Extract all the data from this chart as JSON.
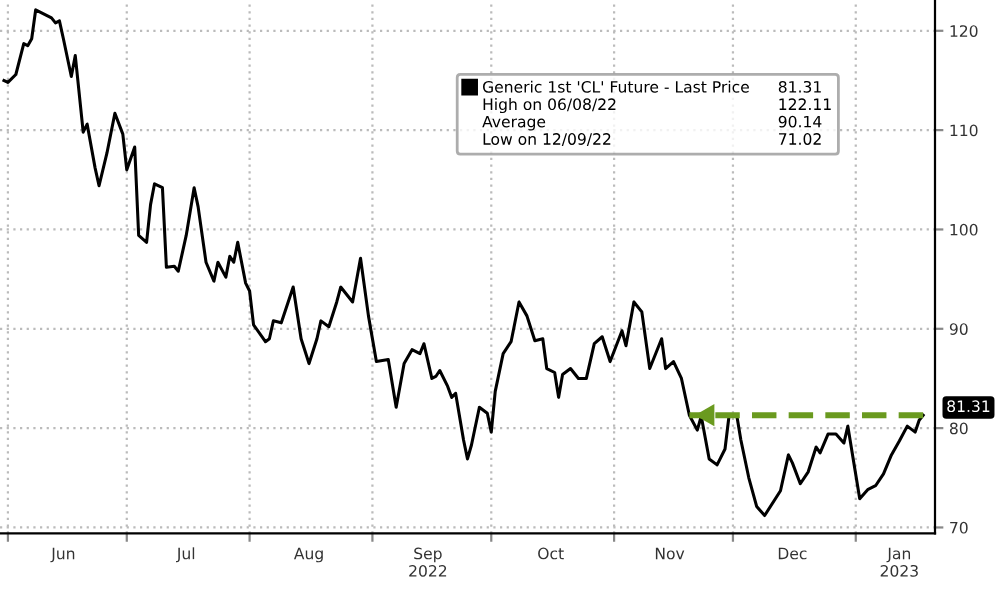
{
  "chart_data": {
    "type": "line",
    "x": [
      "2022-05-31",
      "2022-06-01",
      "2022-06-03",
      "2022-06-05",
      "2022-06-06",
      "2022-06-07",
      "2022-06-08",
      "2022-06-12",
      "2022-06-13",
      "2022-06-14",
      "2022-06-15",
      "2022-06-17",
      "2022-06-18",
      "2022-06-20",
      "2022-06-21",
      "2022-06-23",
      "2022-06-24",
      "2022-06-26",
      "2022-06-28",
      "2022-06-30",
      "2022-07-01",
      "2022-07-03",
      "2022-07-04",
      "2022-07-06",
      "2022-07-07",
      "2022-07-08",
      "2022-07-10",
      "2022-07-11",
      "2022-07-13",
      "2022-07-14",
      "2022-07-16",
      "2022-07-18",
      "2022-07-19",
      "2022-07-21",
      "2022-07-23",
      "2022-07-24",
      "2022-07-26",
      "2022-07-27",
      "2022-07-28",
      "2022-07-29",
      "2022-07-31",
      "2022-08-01",
      "2022-08-02",
      "2022-08-05",
      "2022-08-06",
      "2022-08-07",
      "2022-08-09",
      "2022-08-12",
      "2022-08-14",
      "2022-08-16",
      "2022-08-18",
      "2022-08-19",
      "2022-08-21",
      "2022-08-23",
      "2022-08-24",
      "2022-08-27",
      "2022-08-29",
      "2022-08-31",
      "2022-09-02",
      "2022-09-05",
      "2022-09-07",
      "2022-09-09",
      "2022-09-11",
      "2022-09-13",
      "2022-09-14",
      "2022-09-16",
      "2022-09-17",
      "2022-09-18",
      "2022-09-20",
      "2022-09-21",
      "2022-09-22",
      "2022-09-24",
      "2022-09-25",
      "2022-09-26",
      "2022-09-28",
      "2022-09-30",
      "2022-10-01",
      "2022-10-02",
      "2022-10-04",
      "2022-10-06",
      "2022-10-08",
      "2022-10-10",
      "2022-10-12",
      "2022-10-14",
      "2022-10-15",
      "2022-10-17",
      "2022-10-18",
      "2022-10-19",
      "2022-10-21",
      "2022-10-23",
      "2022-10-25",
      "2022-10-27",
      "2022-10-29",
      "2022-10-31",
      "2022-11-03",
      "2022-11-04",
      "2022-11-06",
      "2022-11-08",
      "2022-11-10",
      "2022-11-13",
      "2022-11-14",
      "2022-11-16",
      "2022-11-18",
      "2022-11-20",
      "2022-11-22",
      "2022-11-23",
      "2022-11-25",
      "2022-11-27",
      "2022-11-29",
      "2022-11-30",
      "2022-12-02",
      "2022-12-03",
      "2022-12-05",
      "2022-12-07",
      "2022-12-09",
      "2022-12-13",
      "2022-12-15",
      "2022-12-16",
      "2022-12-18",
      "2022-12-20",
      "2022-12-22",
      "2022-12-23",
      "2022-12-25",
      "2022-12-27",
      "2022-12-29",
      "2022-12-30",
      "2023-01-02",
      "2023-01-04",
      "2023-01-06",
      "2023-01-08",
      "2023-01-10",
      "2023-01-12",
      "2023-01-14",
      "2023-01-16",
      "2023-01-17",
      "2023-01-18"
    ],
    "series": [
      {
        "name": "Generic 1st 'CL' Future - Last Price",
        "color": "#000000",
        "values": [
          115.0,
          114.8,
          115.6,
          118.7,
          118.5,
          119.2,
          122.1,
          121.3,
          120.8,
          121.0,
          119.2,
          115.4,
          117.5,
          109.8,
          110.6,
          106.2,
          104.4,
          107.7,
          111.7,
          109.6,
          106.0,
          108.3,
          99.4,
          98.7,
          102.5,
          104.6,
          104.2,
          96.2,
          96.3,
          95.8,
          99.4,
          104.2,
          102.3,
          96.7,
          94.8,
          96.7,
          95.2,
          97.3,
          96.7,
          98.7,
          94.6,
          93.8,
          90.4,
          88.7,
          89.0,
          90.8,
          90.6,
          94.2,
          89.0,
          86.5,
          89.0,
          90.8,
          90.2,
          92.7,
          94.2,
          92.7,
          97.1,
          91.3,
          86.7,
          86.9,
          82.1,
          86.5,
          87.9,
          87.5,
          88.5,
          85.0,
          85.2,
          85.8,
          84.2,
          83.1,
          83.5,
          78.8,
          76.9,
          78.3,
          82.1,
          81.5,
          79.6,
          83.7,
          87.5,
          88.7,
          92.7,
          91.3,
          88.8,
          89.0,
          86.0,
          85.6,
          83.1,
          85.4,
          86.0,
          85.0,
          85.0,
          88.5,
          89.2,
          86.7,
          89.8,
          88.3,
          92.7,
          91.7,
          86.0,
          89.0,
          86.0,
          86.7,
          85.0,
          81.3,
          79.8,
          81.2,
          76.9,
          76.3,
          77.9,
          81.2,
          81.2,
          78.8,
          75.0,
          72.1,
          71.2,
          73.7,
          77.3,
          76.5,
          74.4,
          75.6,
          78.1,
          77.5,
          79.4,
          79.4,
          78.5,
          80.2,
          72.9,
          73.8,
          74.2,
          75.4,
          77.3,
          78.7,
          80.2,
          79.6,
          80.8,
          81.3
        ]
      },
      {
        "color": "#6a9a1f",
        "line_style": "dashed",
        "x": [
          "2022-11-20",
          "2023-01-18"
        ],
        "values": [
          81.3,
          81.3
        ]
      }
    ],
    "annotations": [
      "81.31",
      "High on 06/08/22",
      "122.11",
      "Average",
      "90.14",
      "Low on 12/09/22",
      "71.02",
      {
        "text": "81.31",
        "x": "2023-01-18",
        "y": 81.31
      }
    ],
    "xlim": [
      "2022-05-30",
      "2023-01-21"
    ],
    "xticks": [
      {
        "value": "2022-06-01",
        "label": null
      },
      {
        "value": "2022-06-15",
        "label": "Jun"
      },
      {
        "value": "2022-07-01",
        "label": null
      },
      {
        "value": "2022-07-16",
        "label": "Jul"
      },
      {
        "value": "2022-08-01",
        "label": null
      },
      {
        "value": "2022-08-16",
        "label": "Aug"
      },
      {
        "value": "2022-09-01",
        "label": null
      },
      {
        "value": "2022-09-15",
        "label": "Sep\n2022"
      },
      {
        "value": "2022-10-01",
        "label": null
      },
      {
        "value": "2022-10-16",
        "label": "Oct"
      },
      {
        "value": "2022-11-01",
        "label": null
      },
      {
        "value": "2022-11-15",
        "label": "Nov"
      },
      {
        "value": "2022-12-01",
        "label": null
      },
      {
        "value": "2022-12-16",
        "label": "Dec"
      },
      {
        "value": "2023-01-01",
        "label": null
      },
      {
        "value": "2023-01-12",
        "label": "Jan\n2023"
      }
    ],
    "ylim": [
      69.4,
      123.1
    ],
    "yticks": [
      70,
      80,
      90,
      100,
      110,
      120
    ],
    "grid": true,
    "legend": "top right"
  }
}
